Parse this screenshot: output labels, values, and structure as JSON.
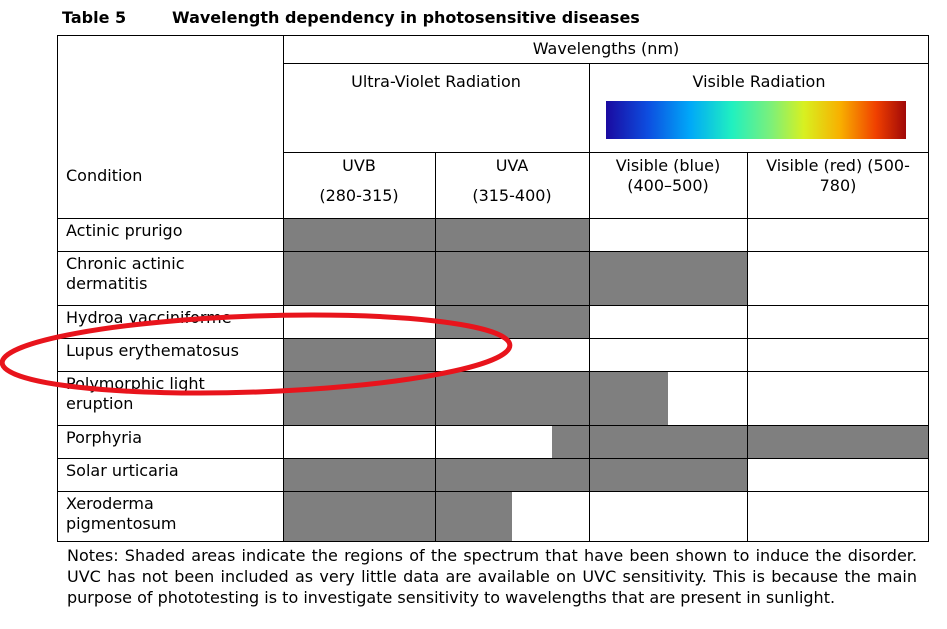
{
  "table": {
    "number": "Table 5",
    "title": "Wavelength dependency in photosensitive diseases",
    "header": {
      "wavelengths": "Wavelengths (nm)",
      "uv": "Ultra-Violet Radiation",
      "visible": "Visible Radiation",
      "condition": "Condition",
      "uvb": "UVB",
      "uvb_range": "(280-315)",
      "uva": "UVA",
      "uva_range": "(315-400)",
      "vis_blue": "Visible (blue)",
      "vis_blue_range": "(400–500)",
      "vis_red_line1": "Visible (red) (500-",
      "vis_red_line2": "780)"
    },
    "rows": [
      {
        "condition_line1": "Actinic prurigo",
        "condition_line2": "",
        "shaded_fraction": {
          "uvb": 1,
          "uva": 1,
          "vis_blue": 0,
          "vis_red": 0
        }
      },
      {
        "condition_line1": "Chronic actinic",
        "condition_line2": "dermatitis",
        "shaded_fraction": {
          "uvb": 1,
          "uva": 1,
          "vis_blue": 1,
          "vis_red": 0
        }
      },
      {
        "condition_line1": "Hydroa vacciniforme",
        "condition_line2": "",
        "shaded_fraction": {
          "uvb": 0,
          "uva": 1,
          "vis_blue": 0,
          "vis_red": 0
        }
      },
      {
        "condition_line1": "Lupus erythematosus",
        "condition_line2": "",
        "shaded_fraction": {
          "uvb": 1,
          "uva": 0,
          "vis_blue": 0,
          "vis_red": 0
        }
      },
      {
        "condition_line1": "Polymorphic light",
        "condition_line2": "eruption",
        "shaded_fraction": {
          "uvb": 1,
          "uva": 1,
          "vis_blue": 0.5,
          "vis_red": 0
        }
      },
      {
        "condition_line1": "Porphyria",
        "condition_line2": "",
        "shaded_fraction": {
          "uvb": 0,
          "uva": 0.24,
          "vis_blue": 1,
          "vis_red": 1
        }
      },
      {
        "condition_line1": "Solar urticaria",
        "condition_line2": "",
        "shaded_fraction": {
          "uvb": 1,
          "uva": 1,
          "vis_blue": 1,
          "vis_red": 0
        }
      },
      {
        "condition_line1": "Xeroderma",
        "condition_line2": "pigmentosum",
        "shaded_fraction": {
          "uvb": 1,
          "uva": 0.5,
          "vis_blue": 0,
          "vis_red": 0
        }
      }
    ],
    "notes": "Notes: Shaded areas indicate the regions of the spectrum that have been shown to induce the disorder. UVC has not been included as very little data are available on UVC sensitivity. This is because the main purpose of phototesting is to investigate sensitivity to wavelengths that are present in sunlight."
  },
  "colors": {
    "shade": "#7f7f7f",
    "annotation_ellipse": "#e8141c"
  }
}
